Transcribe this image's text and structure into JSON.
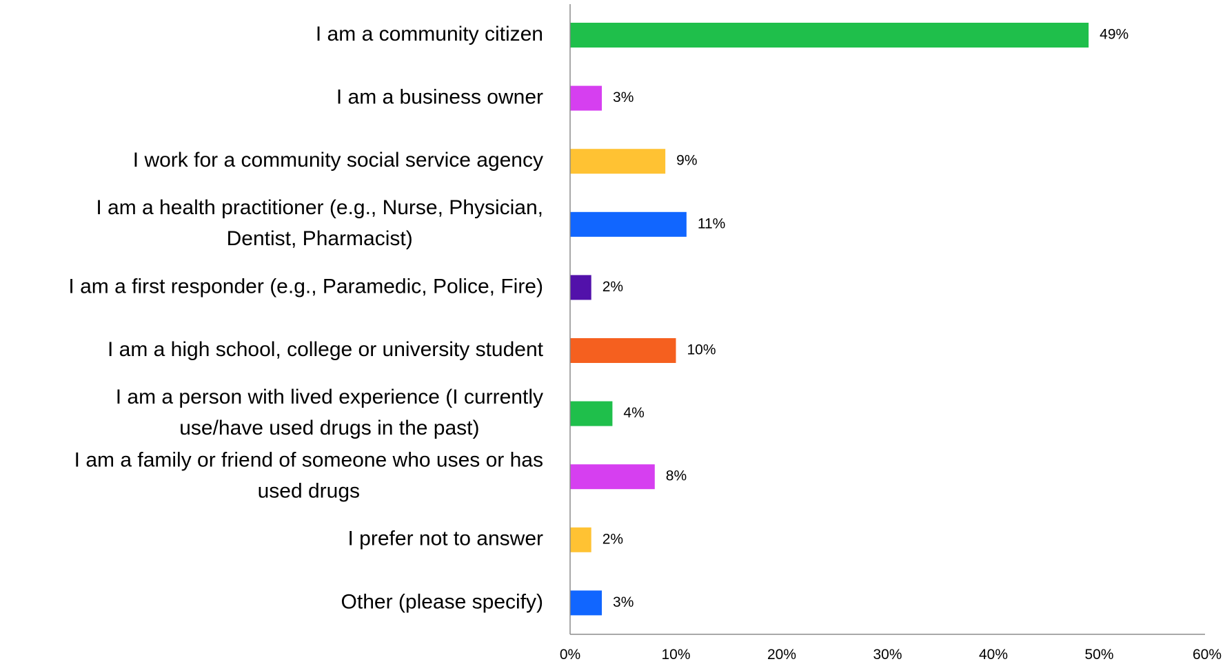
{
  "chart_data": {
    "type": "bar",
    "orientation": "horizontal",
    "title": "",
    "xlabel": "",
    "ylabel": "",
    "xlim": [
      0,
      60
    ],
    "grid": false,
    "legend": "none",
    "categories": [
      [
        "I am a community citizen"
      ],
      [
        "I am a business owner"
      ],
      [
        "I work for a community social service agency"
      ],
      [
        "I am a health practitioner (e.g., Nurse, Physician,",
        "Dentist, Pharmacist)"
      ],
      [
        "I am a first responder (e.g., Paramedic, Police, Fire)"
      ],
      [
        "I am a high school, college or university student"
      ],
      [
        "I am a person with lived experience (I currently",
        "use/have used drugs in the past)"
      ],
      [
        "I am a family or friend of someone who uses or has",
        "used drugs"
      ],
      [
        "I prefer not to answer"
      ],
      [
        "Other (please specify)"
      ]
    ],
    "values": [
      49,
      3,
      9,
      11,
      2,
      10,
      4,
      8,
      2,
      3
    ],
    "value_labels": [
      "49%",
      "3%",
      "9%",
      "11%",
      "2%",
      "10%",
      "4%",
      "8%",
      "2%",
      "3%"
    ],
    "bar_colors": [
      "#1fbf4b",
      "#d63ff0",
      "#ffc233",
      "#1166ff",
      "#5211aa",
      "#f5601f",
      "#1fbf4b",
      "#d63ff0",
      "#ffc233",
      "#1166ff"
    ],
    "x_ticks": [
      0,
      10,
      20,
      30,
      40,
      50,
      60
    ],
    "x_tick_labels": [
      "0%",
      "10%",
      "20%",
      "30%",
      "40%",
      "50%",
      "60%"
    ]
  }
}
